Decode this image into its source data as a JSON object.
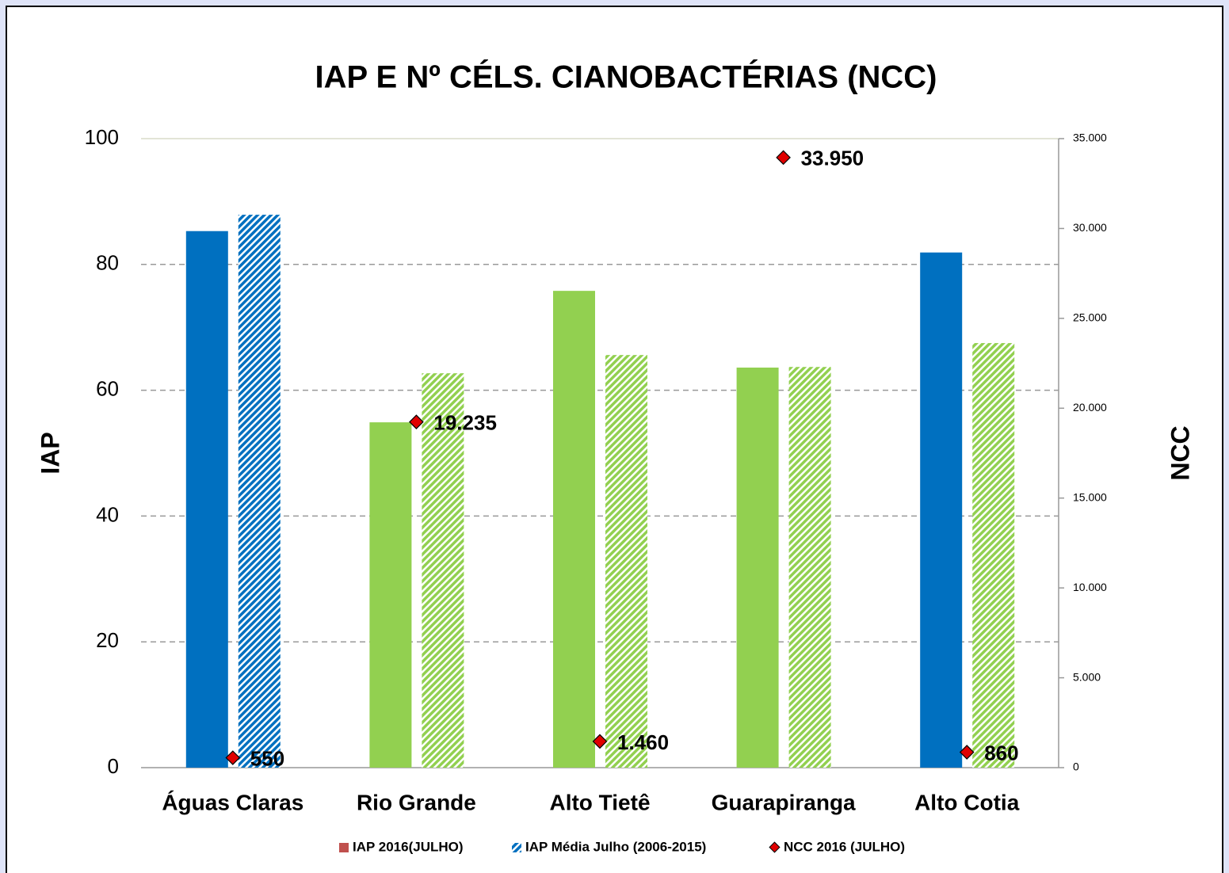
{
  "chart_data": {
    "type": "bar",
    "title": "IAP E Nº CÉLS. CIANOBACTÉRIAS (NCC)",
    "y_label": "IAP",
    "y2_label": "NCC",
    "categories": [
      "Águas Claras",
      "Rio Grande",
      "Alto Tietê",
      "Guarapiranga",
      "Alto Cotia"
    ],
    "series": [
      {
        "name": "IAP 2016(JULHO)",
        "type": "bar",
        "color": "#c0504d",
        "point_colors": [
          "#0070c0",
          "#92d050",
          "#92d050",
          "#92d050",
          "#0070c0"
        ],
        "hatched": false,
        "values": [
          85.3,
          54.9,
          75.8,
          63.6,
          81.9
        ]
      },
      {
        "name": "IAP Média Julho (2006-2015)",
        "type": "bar",
        "color": "#0070c0",
        "point_colors": [
          "#0070c0",
          "#92d050",
          "#92d050",
          "#92d050",
          "#92d050"
        ],
        "hatched": true,
        "values": [
          87.9,
          62.7,
          65.6,
          63.7,
          67.5
        ]
      },
      {
        "name": "NCC 2016 (JULHO)",
        "type": "scatter",
        "axis": "y2",
        "color": "#e00000",
        "values": [
          550,
          19235,
          1460,
          33950,
          860
        ],
        "value_labels": [
          "550",
          "19.235",
          "1.460",
          "33.950",
          "860"
        ]
      }
    ],
    "ylim": [
      0,
      100
    ],
    "yticks": [
      0,
      20,
      40,
      60,
      80,
      100
    ],
    "y2lim": [
      0,
      35000
    ],
    "y2ticks": [
      0,
      {
        "value": 5000,
        "label": "5.000"
      },
      {
        "value": 10000,
        "label": "10.000"
      },
      {
        "value": 15000,
        "label": "15.000"
      },
      {
        "value": 20000,
        "label": "20.000"
      },
      {
        "value": 25000,
        "label": "25.000"
      },
      {
        "value": 30000,
        "label": "30.000"
      },
      {
        "value": 35000,
        "label": "35.000"
      }
    ],
    "grid": true,
    "legend": "bottom"
  }
}
